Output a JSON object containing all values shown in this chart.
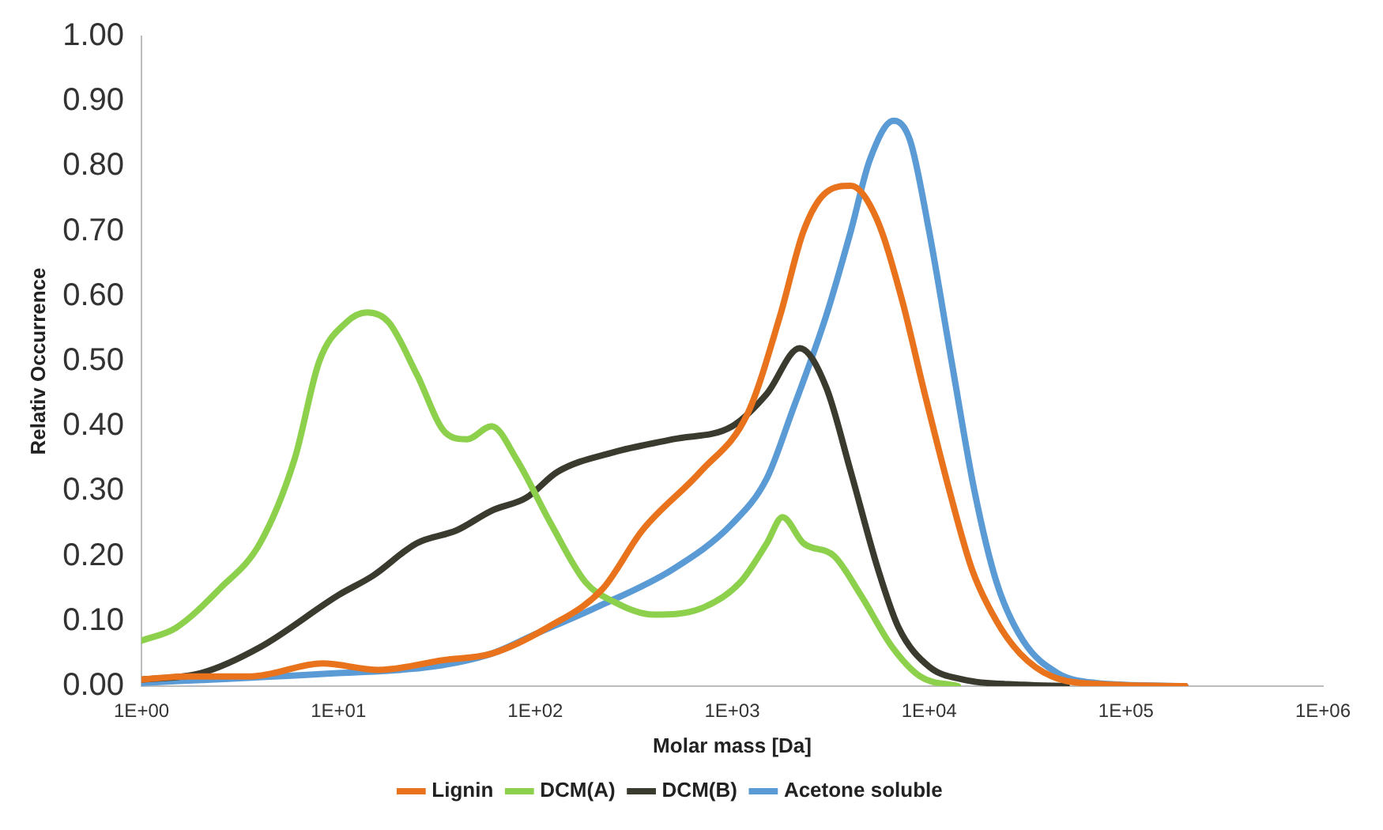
{
  "chart_data": {
    "type": "line",
    "xlabel": "Molar mass [Da]",
    "ylabel": "Relativ Occurrence",
    "log": "x",
    "grid": false,
    "legend": "bottom",
    "marker": "none",
    "line_style": "solid",
    "xlim": [
      1,
      1000000
    ],
    "xticks": [
      {
        "value": 1,
        "label": "1E+00"
      },
      {
        "value": 10,
        "label": "1E+01"
      },
      {
        "value": 100,
        "label": "1E+02"
      },
      {
        "value": 1000,
        "label": "1E+03"
      },
      {
        "value": 10000,
        "label": "1E+04"
      },
      {
        "value": 100000,
        "label": "1E+05"
      },
      {
        "value": 1000000,
        "label": "1E+06"
      }
    ],
    "ylim": [
      0,
      1
    ],
    "yticks": [
      {
        "value": 0,
        "label": "0.00"
      },
      {
        "value": 0.1,
        "label": "0.10"
      },
      {
        "value": 0.2,
        "label": "0.20"
      },
      {
        "value": 0.3,
        "label": "0.30"
      },
      {
        "value": 0.4,
        "label": "0.40"
      },
      {
        "value": 0.5,
        "label": "0.50"
      },
      {
        "value": 0.6,
        "label": "0.60"
      },
      {
        "value": 0.7,
        "label": "0.70"
      },
      {
        "value": 0.8,
        "label": "0.80"
      },
      {
        "value": 0.9,
        "label": "0.90"
      },
      {
        "value": 1,
        "label": "1.00"
      }
    ],
    "series": [
      {
        "name": "Lignin",
        "color": "#e8731c",
        "x": [
          1,
          1.7,
          3.6,
          8.3,
          16,
          34,
          60,
          115,
          220,
          350,
          690,
          1200,
          1750,
          2300,
          3000,
          4000,
          5400,
          7200,
          9500,
          12700,
          16500,
          22000,
          29000,
          42000,
          75000,
          200000
        ],
        "values": [
          0.01,
          0.015,
          0.015,
          0.035,
          0.025,
          0.04,
          0.05,
          0.09,
          0.15,
          0.24,
          0.33,
          0.42,
          0.57,
          0.7,
          0.76,
          0.77,
          0.72,
          0.6,
          0.45,
          0.3,
          0.18,
          0.1,
          0.05,
          0.015,
          0.003,
          0
        ]
      },
      {
        "name": "DCM(A)",
        "color": "#8cd04c",
        "x": [
          1,
          1.5,
          2.5,
          4,
          6,
          8,
          11,
          14,
          18,
          25,
          35,
          45,
          60,
          80,
          120,
          180,
          250,
          400,
          700,
          1100,
          1500,
          1800,
          2300,
          3300,
          4500,
          6500,
          9000,
          14000
        ],
        "values": [
          0.07,
          0.09,
          0.15,
          0.22,
          0.35,
          0.5,
          0.56,
          0.575,
          0.56,
          0.48,
          0.39,
          0.38,
          0.4,
          0.35,
          0.25,
          0.16,
          0.13,
          0.11,
          0.12,
          0.16,
          0.22,
          0.26,
          0.22,
          0.2,
          0.14,
          0.06,
          0.015,
          0
        ]
      },
      {
        "name": "DCM(B)",
        "color": "#3b3a2e",
        "x": [
          1,
          2,
          4,
          10,
          15,
          25,
          40,
          60,
          90,
          130,
          250,
          500,
          1000,
          1500,
          2200,
          3000,
          4000,
          5500,
          7000,
          10000,
          15000,
          30000,
          50000
        ],
        "values": [
          0.01,
          0.02,
          0.06,
          0.14,
          0.17,
          0.22,
          0.24,
          0.27,
          0.29,
          0.33,
          0.36,
          0.38,
          0.4,
          0.45,
          0.52,
          0.46,
          0.33,
          0.18,
          0.09,
          0.03,
          0.01,
          0.002,
          0
        ]
      },
      {
        "name": "Acetone soluble",
        "color": "#5b9bd5",
        "x": [
          1,
          10,
          30,
          60,
          100,
          200,
          500,
          1000,
          1500,
          2000,
          3000,
          4000,
          5000,
          6600,
          8000,
          10000,
          13000,
          17000,
          22000,
          30000,
          45000,
          70000,
          200000
        ],
        "values": [
          0.005,
          0.02,
          0.03,
          0.05,
          0.08,
          0.12,
          0.18,
          0.25,
          0.32,
          0.42,
          0.57,
          0.7,
          0.81,
          0.87,
          0.84,
          0.7,
          0.5,
          0.3,
          0.16,
          0.07,
          0.02,
          0.005,
          0
        ]
      }
    ]
  }
}
